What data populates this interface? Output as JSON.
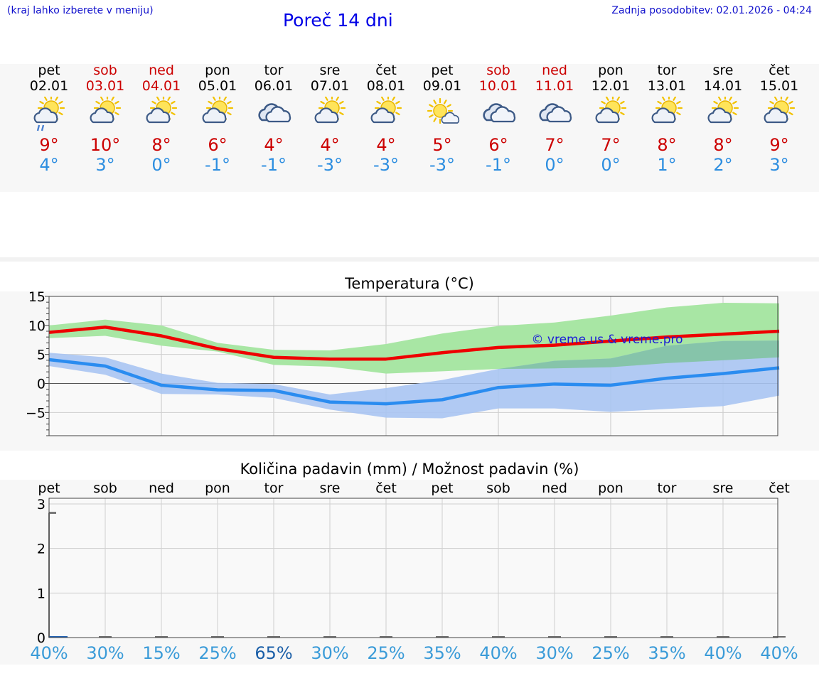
{
  "header": {
    "hint": "(kraj lahko izberete v meniju)",
    "title": "Poreč 14 dni",
    "updated": "Zadnja posodobitev: 02.01.2026 - 04:24"
  },
  "days": [
    {
      "name": "pet",
      "date": "02.01",
      "weekend": false,
      "icon": "partly-sunny-drizzle-icon",
      "tmax": "9°",
      "tmin": "4°"
    },
    {
      "name": "sob",
      "date": "03.01",
      "weekend": true,
      "icon": "partly-sunny-icon",
      "tmax": "10°",
      "tmin": "3°"
    },
    {
      "name": "ned",
      "date": "04.01",
      "weekend": true,
      "icon": "partly-sunny-icon",
      "tmax": "8°",
      "tmin": "0°"
    },
    {
      "name": "pon",
      "date": "05.01",
      "weekend": false,
      "icon": "partly-sunny-icon",
      "tmax": "6°",
      "tmin": "-1°"
    },
    {
      "name": "tor",
      "date": "06.01",
      "weekend": false,
      "icon": "cloudy-icon",
      "tmax": "4°",
      "tmin": "-1°"
    },
    {
      "name": "sre",
      "date": "07.01",
      "weekend": false,
      "icon": "partly-sunny-icon",
      "tmax": "4°",
      "tmin": "-3°"
    },
    {
      "name": "čet",
      "date": "08.01",
      "weekend": false,
      "icon": "partly-sunny-icon",
      "tmax": "4°",
      "tmin": "-3°"
    },
    {
      "name": "pet",
      "date": "09.01",
      "weekend": false,
      "icon": "mostly-sunny-icon",
      "tmax": "5°",
      "tmin": "-3°"
    },
    {
      "name": "sob",
      "date": "10.01",
      "weekend": true,
      "icon": "cloudy-icon",
      "tmax": "6°",
      "tmin": "-1°"
    },
    {
      "name": "ned",
      "date": "11.01",
      "weekend": true,
      "icon": "cloudy-icon",
      "tmax": "7°",
      "tmin": "0°"
    },
    {
      "name": "pon",
      "date": "12.01",
      "weekend": false,
      "icon": "partly-sunny-icon",
      "tmax": "7°",
      "tmin": "0°"
    },
    {
      "name": "tor",
      "date": "13.01",
      "weekend": false,
      "icon": "partly-sunny-icon",
      "tmax": "8°",
      "tmin": "1°"
    },
    {
      "name": "sre",
      "date": "14.01",
      "weekend": false,
      "icon": "partly-sunny-icon",
      "tmax": "8°",
      "tmin": "2°"
    },
    {
      "name": "čet",
      "date": "15.01",
      "weekend": false,
      "icon": "partly-sunny-icon",
      "tmax": "9°",
      "tmin": "3°"
    }
  ],
  "colors": {
    "max_line": "#ee0000",
    "max_band": "#a8e6a4",
    "min_line": "#2a8cf0",
    "min_band": "#a9c4f2",
    "overlap_band": "#86c4aa",
    "weekend_text": "#cc0000",
    "precip_pct": "#3a9bd8",
    "precip_pct_high": "#1b5fa8"
  },
  "chart_data": [
    {
      "type": "line",
      "title": "Temperatura (°C)",
      "watermark": "© vreme.us & vreme.pro",
      "ylim": [
        -9,
        15
      ],
      "yticks": [
        15,
        10,
        5,
        0,
        -5
      ],
      "x": [
        0,
        1,
        2,
        3,
        4,
        5,
        6,
        7,
        8,
        9,
        10,
        11,
        12,
        13
      ],
      "series": [
        {
          "name": "max",
          "values": [
            8.8,
            9.7,
            8.2,
            6.0,
            4.5,
            4.2,
            4.2,
            5.3,
            6.2,
            6.6,
            7.3,
            8.0,
            8.5,
            9.0
          ],
          "band_low": [
            7.8,
            8.2,
            6.5,
            5.5,
            3.2,
            2.9,
            1.7,
            2.1,
            2.5,
            2.6,
            2.8,
            3.5,
            4.0,
            4.5
          ],
          "band_high": [
            10.0,
            11.0,
            10.0,
            7.0,
            5.8,
            5.7,
            6.8,
            8.6,
            9.9,
            10.5,
            11.7,
            13.1,
            13.9,
            13.8
          ]
        },
        {
          "name": "min",
          "values": [
            4.1,
            3.0,
            -0.3,
            -1.1,
            -1.2,
            -3.2,
            -3.5,
            -2.8,
            -0.7,
            -0.1,
            -0.3,
            0.9,
            1.7,
            2.7
          ],
          "band_low": [
            3.0,
            1.5,
            -1.8,
            -1.9,
            -2.5,
            -4.5,
            -5.9,
            -6.0,
            -4.3,
            -4.3,
            -4.9,
            -4.4,
            -3.9,
            -2.1
          ],
          "band_high": [
            5.3,
            4.5,
            1.7,
            0.1,
            -0.1,
            -1.9,
            -0.8,
            0.6,
            2.5,
            3.9,
            4.3,
            6.5,
            7.3,
            7.4
          ]
        }
      ]
    },
    {
      "type": "bar",
      "title": "Količina padavin (mm) / Možnost padavin (%)",
      "ylim": [
        0,
        3
      ],
      "yticks": [
        3,
        2,
        1,
        0
      ],
      "categories": [
        "pet",
        "sob",
        "ned",
        "pon",
        "tor",
        "sre",
        "čet",
        "pet",
        "sob",
        "ned",
        "pon",
        "tor",
        "sre",
        "čet"
      ],
      "values": [
        0.03,
        0,
        0,
        0,
        0,
        0,
        0,
        0,
        0,
        0,
        0,
        0,
        0,
        0
      ],
      "peak_marker": 2.8,
      "probability": [
        "40%",
        "30%",
        "15%",
        "25%",
        "65%",
        "30%",
        "25%",
        "35%",
        "40%",
        "30%",
        "25%",
        "35%",
        "40%",
        "40%"
      ]
    }
  ]
}
